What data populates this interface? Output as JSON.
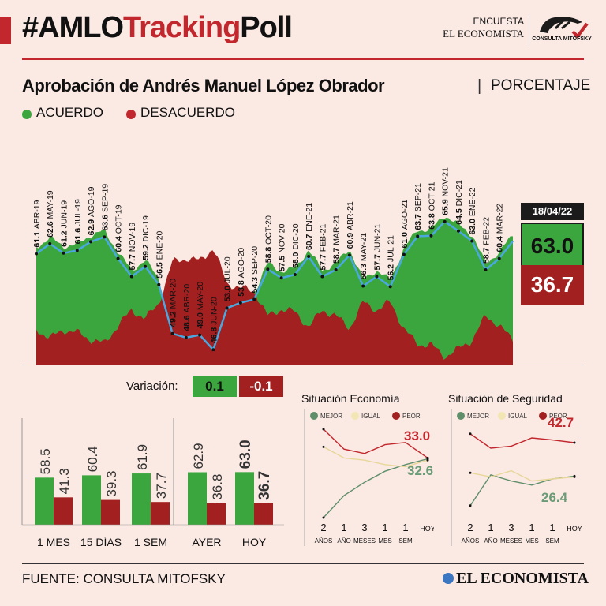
{
  "header": {
    "hashtag_prefix": "#AMLO",
    "hashtag_red": "Tracking",
    "hashtag_suffix": "Poll",
    "brand_line1": "ENCUESTA",
    "brand_line2": "EL ECONOMISTA",
    "mitofsky_label": "CONSULTA MITOFSKY"
  },
  "title": {
    "main": "Aprobación de Andrés Manuel López Obrador",
    "sep": "|",
    "unit": "PORCENTAJE"
  },
  "legend": {
    "acuerdo": "ACUERDO",
    "desacuerdo": "DESACUERDO"
  },
  "colors": {
    "green": "#3ca63e",
    "red": "#a32020",
    "accent": "#c1272d",
    "line": "#4aa8e0",
    "beige": "#f2e6b4",
    "dark": "#1b1b1b"
  },
  "current": {
    "date": "18/04/22",
    "acuerdo": "63.0",
    "desacuerdo": "36.7"
  },
  "variacion": {
    "label": "Variación:",
    "acuerdo": "0.1",
    "desacuerdo": "-0.1"
  },
  "chart_data": [
    {
      "type": "area",
      "title": "Aprobación de Andrés Manuel López Obrador",
      "series": [
        {
          "name": "ACUERDO",
          "labels": [
            "ABR-19",
            "MAY-19",
            "JUN-19",
            "JUL-19",
            "AGO-19",
            "SEP-19",
            "OCT-19",
            "NOV-19",
            "DIC-19",
            "ENE-20",
            "MAR-20",
            "ABR-20",
            "MAY-20",
            "JUN-20",
            "JUL-20",
            "AGO-20",
            "SEP-20",
            "OCT-20",
            "NOV-20",
            "DIC-20",
            "ENE-21",
            "FEB-21",
            "MAR-21",
            "ABR-21",
            "MAY-21",
            "JUN-21",
            "JUL-21",
            "AGO-21",
            "SEP-21",
            "OCT-21",
            "NOV-21",
            "DIC-21",
            "ENE-22",
            "FEB-22",
            "MAR-22"
          ],
          "values": [
            61.1,
            62.6,
            61.2,
            61.6,
            62.9,
            63.6,
            60.4,
            57.7,
            59.2,
            56.5,
            49.2,
            48.6,
            49.0,
            46.8,
            53.0,
            53.8,
            54.3,
            58.8,
            57.5,
            58.0,
            60.7,
            57.7,
            58.7,
            60.9,
            56.3,
            57.7,
            56.2,
            61.0,
            63.7,
            63.8,
            65.9,
            64.5,
            63.0,
            58.7,
            60.4
          ]
        }
      ],
      "current": {
        "date": "18/04/22",
        "acuerdo": 63.0,
        "desacuerdo": 36.7
      }
    },
    {
      "type": "bar",
      "categories": [
        "1 MES",
        "15 DÍAS",
        "1 SEM",
        "AYER",
        "HOY"
      ],
      "series": [
        {
          "name": "ACUERDO",
          "values": [
            58.5,
            60.4,
            61.9,
            62.9,
            63.0
          ]
        },
        {
          "name": "DESACUERDO",
          "values": [
            41.3,
            39.3,
            37.7,
            36.8,
            36.7
          ]
        }
      ]
    },
    {
      "type": "line",
      "title": "Situación Economía",
      "categories": [
        "2",
        "1",
        "3",
        "1",
        "1",
        "HOY"
      ],
      "category_sublabels": [
        "AÑOS",
        "AÑO",
        "MESES",
        "MES",
        "SEM",
        ""
      ],
      "series": [
        {
          "name": "MEJOR",
          "values": [
            6,
            16,
            22,
            27,
            30,
            32.6
          ]
        },
        {
          "name": "IGUAL",
          "values": [
            38,
            33,
            32,
            30,
            29,
            32.0
          ]
        },
        {
          "name": "PEOR",
          "values": [
            46,
            37,
            35,
            39,
            40,
            33.0
          ]
        }
      ],
      "labels": {
        "peor": "33.0",
        "mejor": "32.6"
      }
    },
    {
      "type": "line",
      "title": "Situación de Seguridad",
      "categories": [
        "2",
        "1",
        "3",
        "1",
        "1",
        "HOY"
      ],
      "category_sublabels": [
        "AÑOS",
        "AÑO",
        "MESES",
        "MES",
        "SEM",
        ""
      ],
      "series": [
        {
          "name": "MEJOR",
          "values": [
            12,
            27,
            24,
            22,
            25,
            26.4
          ]
        },
        {
          "name": "IGUAL",
          "values": [
            28,
            26,
            29,
            24,
            25,
            26
          ]
        },
        {
          "name": "PEOR",
          "values": [
            47,
            40,
            41,
            45,
            44,
            42.7
          ]
        }
      ],
      "labels": {
        "peor": "42.7",
        "mejor": "26.4"
      }
    }
  ],
  "footer": {
    "fuente": "FUENTE: CONSULTA MITOFSKY",
    "brand": "EL ECONOMISTA"
  }
}
